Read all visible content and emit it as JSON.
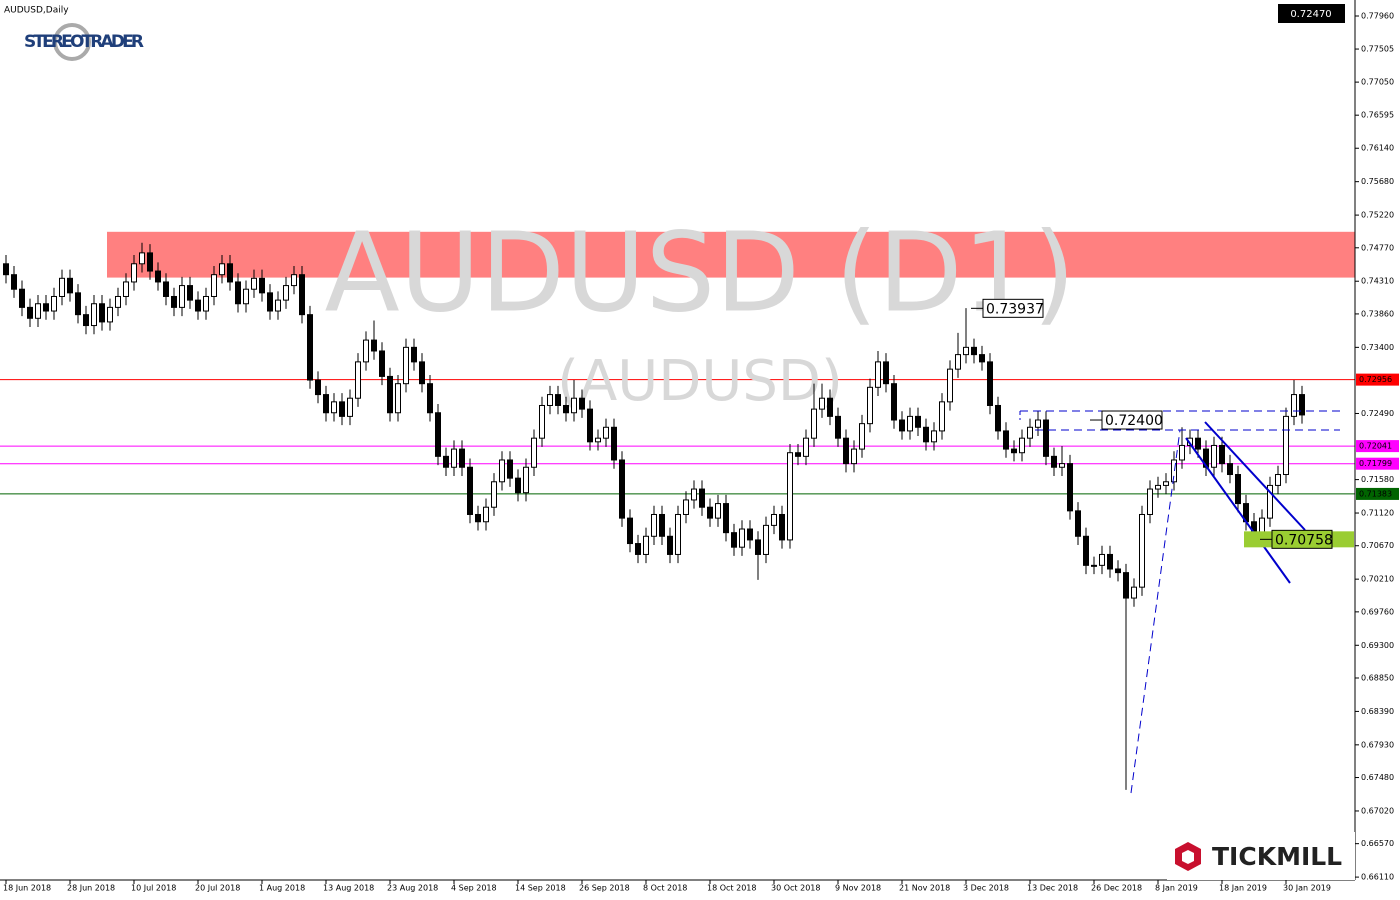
{
  "chart_data": {
    "type": "candlestick",
    "title": "AUDUSD,Daily",
    "watermark": "AUDUSD (D1)",
    "watermark_sub": "(AUDUSD)",
    "source_logo": "STEREOTRADER",
    "broker_logo": "TICKMILL",
    "categories": [
      "18 Jun 2018",
      null,
      null,
      null,
      null,
      null,
      null,
      null,
      "28 Jun 2018",
      null,
      null,
      null,
      null,
      null,
      null,
      null,
      "10 Jul 2018",
      null,
      null,
      null,
      null,
      null,
      null,
      null,
      "20 Jul 2018",
      null,
      null,
      null,
      null,
      null,
      null,
      null,
      "1 Aug 2018",
      null,
      null,
      null,
      null,
      null,
      null,
      null,
      "13 Aug 2018",
      null,
      null,
      null,
      null,
      null,
      null,
      null,
      "23 Aug 2018",
      null,
      null,
      null,
      null,
      null,
      null,
      null,
      "4 Sep 2018",
      null,
      null,
      null,
      null,
      null,
      null,
      null,
      "14 Sep 2018",
      null,
      null,
      null,
      null,
      null,
      null,
      null,
      "26 Sep 2018",
      null,
      null,
      null,
      null,
      null,
      null,
      null,
      "8 Oct 2018",
      null,
      null,
      null,
      null,
      null,
      null,
      null,
      "18 Oct 2018",
      null,
      null,
      null,
      null,
      null,
      null,
      null,
      "30 Oct 2018",
      null,
      null,
      null,
      null,
      null,
      null,
      null,
      "9 Nov 2018",
      null,
      null,
      null,
      null,
      null,
      null,
      null,
      "21 Nov 2018",
      null,
      null,
      null,
      null,
      null,
      null,
      null,
      "3 Dec 2018",
      null,
      null,
      null,
      null,
      null,
      null,
      null,
      "13 Dec 2018",
      null,
      null,
      null,
      null,
      null,
      null,
      null,
      "26 Dec 2018",
      null,
      null,
      null,
      null,
      null,
      null,
      null,
      "8 Jan 2019",
      null,
      null,
      null,
      null,
      null,
      null,
      null,
      "18 Jan 2019",
      null,
      null,
      null,
      null,
      null,
      null,
      null,
      "30 Jan 2019",
      null,
      null
    ],
    "open": [
      0.7455,
      0.744,
      0.742,
      0.7395,
      0.738,
      0.74,
      0.739,
      0.741,
      0.7435,
      0.7415,
      0.7385,
      0.737,
      0.74,
      0.7375,
      0.7395,
      0.741,
      0.743,
      0.7455,
      0.747,
      0.7445,
      0.743,
      0.741,
      0.7395,
      0.7425,
      0.7405,
      0.739,
      0.741,
      0.744,
      0.7455,
      0.743,
      0.74,
      0.742,
      0.7435,
      0.7415,
      0.739,
      0.7405,
      0.7425,
      0.744,
      0.7385,
      0.7295,
      0.7275,
      0.725,
      0.7265,
      0.7245,
      0.727,
      0.732,
      0.735,
      0.7335,
      0.73,
      0.725,
      0.729,
      0.734,
      0.732,
      0.729,
      0.725,
      0.719,
      0.7175,
      0.72,
      0.7175,
      0.711,
      0.71,
      0.712,
      0.7155,
      0.7185,
      0.716,
      0.714,
      0.7175,
      0.7215,
      0.726,
      0.7275,
      0.726,
      0.725,
      0.727,
      0.7255,
      0.721,
      0.7215,
      0.723,
      0.7185,
      0.7105,
      0.707,
      0.7055,
      0.708,
      0.711,
      0.708,
      0.7055,
      0.711,
      0.713,
      0.7145,
      0.712,
      0.7105,
      0.7125,
      0.7085,
      0.7065,
      0.709,
      0.7075,
      0.7055,
      0.7095,
      0.711,
      0.7075,
      0.7195,
      0.719,
      0.7215,
      0.7255,
      0.727,
      0.7245,
      0.7215,
      0.718,
      0.72,
      0.7235,
      0.7285,
      0.732,
      0.729,
      0.724,
      0.7225,
      0.7245,
      0.723,
      0.721,
      0.7225,
      0.7265,
      0.731,
      0.733,
      0.734,
      0.733,
      0.732,
      0.726,
      0.7225,
      0.72,
      0.7195,
      0.7215,
      0.723,
      0.724,
      0.719,
      0.7175,
      0.718,
      0.7115,
      0.708,
      0.704,
      0.704,
      0.7055,
      0.7035,
      0.703,
      0.6995,
      0.701,
      0.711,
      0.7145,
      0.715,
      0.7155,
      0.7185,
      0.7205,
      0.7215,
      0.72,
      0.7175,
      0.7205,
      0.718,
      0.7165,
      0.7125,
      0.71,
      0.7085,
      0.7105,
      0.715,
      0.7165,
      0.7245,
      0.7275
    ],
    "high": [
      0.7467,
      0.7452,
      0.7432,
      0.7407,
      0.7412,
      0.7412,
      0.7422,
      0.7447,
      0.7447,
      0.7427,
      0.7397,
      0.7412,
      0.7412,
      0.7407,
      0.7422,
      0.7442,
      0.7467,
      0.7484,
      0.7482,
      0.7457,
      0.7442,
      0.7422,
      0.7437,
      0.7437,
      0.7417,
      0.7422,
      0.7452,
      0.7467,
      0.7467,
      0.7442,
      0.7432,
      0.7447,
      0.7447,
      0.7427,
      0.7417,
      0.7437,
      0.7452,
      0.7452,
      0.7397,
      0.7307,
      0.7287,
      0.7277,
      0.7277,
      0.7282,
      0.7332,
      0.7362,
      0.7377,
      0.7347,
      0.7312,
      0.7302,
      0.7352,
      0.7352,
      0.7332,
      0.7302,
      0.7262,
      0.7202,
      0.7212,
      0.7212,
      0.7187,
      0.7122,
      0.7132,
      0.7167,
      0.7197,
      0.7197,
      0.7172,
      0.7187,
      0.7227,
      0.7272,
      0.7287,
      0.7287,
      0.7272,
      0.7295,
      0.7282,
      0.7267,
      0.7227,
      0.7242,
      0.7242,
      0.7197,
      0.7117,
      0.7082,
      0.7092,
      0.7122,
      0.7122,
      0.7092,
      0.7122,
      0.7142,
      0.7157,
      0.7157,
      0.7132,
      0.7137,
      0.7137,
      0.7097,
      0.7102,
      0.7102,
      0.7087,
      0.7107,
      0.7122,
      0.7122,
      0.7207,
      0.7207,
      0.7227,
      0.729,
      0.729,
      0.7282,
      0.7257,
      0.7227,
      0.7212,
      0.7247,
      0.7297,
      0.7335,
      0.7332,
      0.7302,
      0.7252,
      0.7257,
      0.7257,
      0.7242,
      0.7237,
      0.7277,
      0.7322,
      0.736,
      0.7394,
      0.7352,
      0.7342,
      0.7332,
      0.7272,
      0.7237,
      0.7212,
      0.7227,
      0.7242,
      0.7252,
      0.7252,
      0.7202,
      0.7204,
      0.7192,
      0.7127,
      0.7092,
      0.7052,
      0.7067,
      0.7067,
      0.7047,
      0.7042,
      0.7022,
      0.7122,
      0.7157,
      0.7162,
      0.7167,
      0.7197,
      0.723,
      0.7227,
      0.7227,
      0.7212,
      0.7217,
      0.7217,
      0.7192,
      0.7177,
      0.7137,
      0.7112,
      0.7117,
      0.7162,
      0.7177,
      0.7257,
      0.7295,
      0.7287
    ],
    "low": [
      0.7428,
      0.7408,
      0.7383,
      0.7368,
      0.7368,
      0.7378,
      0.7378,
      0.7398,
      0.7403,
      0.7373,
      0.7358,
      0.7358,
      0.7363,
      0.7363,
      0.7383,
      0.7398,
      0.7418,
      0.7443,
      0.7433,
      0.7418,
      0.7398,
      0.7383,
      0.7383,
      0.7393,
      0.7378,
      0.7378,
      0.7398,
      0.7428,
      0.7418,
      0.7388,
      0.7388,
      0.7408,
      0.7403,
      0.7378,
      0.7378,
      0.7393,
      0.7413,
      0.7373,
      0.7283,
      0.7263,
      0.7238,
      0.7238,
      0.7233,
      0.7233,
      0.7258,
      0.7308,
      0.7323,
      0.7288,
      0.7238,
      0.7238,
      0.7278,
      0.7308,
      0.7278,
      0.7238,
      0.7178,
      0.7163,
      0.7163,
      0.7163,
      0.7098,
      0.7088,
      0.7088,
      0.7108,
      0.7143,
      0.7148,
      0.7128,
      0.7128,
      0.7163,
      0.7203,
      0.7248,
      0.7248,
      0.7238,
      0.7238,
      0.7243,
      0.7198,
      0.7198,
      0.7203,
      0.7173,
      0.7093,
      0.7058,
      0.7043,
      0.7043,
      0.7068,
      0.7068,
      0.7043,
      0.7043,
      0.7098,
      0.7118,
      0.7108,
      0.7093,
      0.7093,
      0.7073,
      0.7053,
      0.7053,
      0.7063,
      0.702,
      0.7043,
      0.7083,
      0.7063,
      0.7063,
      0.7178,
      0.7178,
      0.7203,
      0.7243,
      0.7233,
      0.7203,
      0.7168,
      0.7168,
      0.7188,
      0.7223,
      0.7273,
      0.7278,
      0.7228,
      0.7213,
      0.7213,
      0.7218,
      0.7198,
      0.7198,
      0.7213,
      0.7253,
      0.7298,
      0.7318,
      0.7318,
      0.7308,
      0.7248,
      0.7213,
      0.7188,
      0.7183,
      0.7183,
      0.7203,
      0.7218,
      0.7178,
      0.7163,
      0.7163,
      0.7103,
      0.7068,
      0.7028,
      0.7028,
      0.7028,
      0.7023,
      0.7018,
      0.6731,
      0.6983,
      0.6998,
      0.7098,
      0.7133,
      0.7138,
      0.7143,
      0.7173,
      0.7193,
      0.7188,
      0.7163,
      0.7163,
      0.7168,
      0.7153,
      0.7113,
      0.7088,
      0.7076,
      0.7073,
      0.7093,
      0.7138,
      0.7153,
      0.7233,
      0.7235
    ],
    "close": [
      0.744,
      0.742,
      0.7395,
      0.738,
      0.74,
      0.739,
      0.741,
      0.7435,
      0.7415,
      0.7385,
      0.737,
      0.74,
      0.7375,
      0.7395,
      0.741,
      0.743,
      0.7455,
      0.747,
      0.7445,
      0.743,
      0.741,
      0.7395,
      0.7425,
      0.7405,
      0.739,
      0.741,
      0.744,
      0.7455,
      0.743,
      0.74,
      0.742,
      0.7435,
      0.7415,
      0.739,
      0.7405,
      0.7425,
      0.744,
      0.7385,
      0.7295,
      0.7275,
      0.725,
      0.7265,
      0.7245,
      0.727,
      0.732,
      0.735,
      0.7335,
      0.73,
      0.725,
      0.729,
      0.734,
      0.732,
      0.729,
      0.725,
      0.719,
      0.7175,
      0.72,
      0.7175,
      0.711,
      0.71,
      0.712,
      0.7155,
      0.7185,
      0.716,
      0.714,
      0.7175,
      0.7215,
      0.726,
      0.7275,
      0.726,
      0.725,
      0.727,
      0.7255,
      0.721,
      0.7215,
      0.723,
      0.7185,
      0.7105,
      0.707,
      0.7055,
      0.708,
      0.711,
      0.708,
      0.7055,
      0.711,
      0.713,
      0.7145,
      0.712,
      0.7105,
      0.7125,
      0.7085,
      0.7065,
      0.709,
      0.7075,
      0.7055,
      0.7095,
      0.711,
      0.7075,
      0.7195,
      0.719,
      0.7215,
      0.7255,
      0.727,
      0.7245,
      0.7215,
      0.718,
      0.72,
      0.7235,
      0.7285,
      0.732,
      0.729,
      0.724,
      0.7225,
      0.7245,
      0.723,
      0.721,
      0.7225,
      0.7265,
      0.731,
      0.733,
      0.734,
      0.733,
      0.732,
      0.726,
      0.7225,
      0.72,
      0.7195,
      0.7215,
      0.723,
      0.724,
      0.719,
      0.7175,
      0.718,
      0.7115,
      0.708,
      0.704,
      0.704,
      0.7055,
      0.7035,
      0.703,
      0.6995,
      0.701,
      0.711,
      0.7145,
      0.715,
      0.7155,
      0.7185,
      0.7205,
      0.7215,
      0.72,
      0.7175,
      0.7205,
      0.718,
      0.7165,
      0.7125,
      0.71,
      0.7085,
      0.7105,
      0.715,
      0.7165,
      0.7245,
      0.7275,
      0.7247
    ],
    "up_color": "#ffffff",
    "down_color": "#000000",
    "ylim": [
      0.6607,
      0.7818
    ],
    "yticks": [
      {
        "value": 0.7796,
        "label": "0.77960"
      },
      0.77505,
      {
        "value": 0.7705,
        "label": "0.77050"
      },
      0.76595,
      {
        "value": 0.7614,
        "label": "0.76140"
      },
      {
        "value": 0.7568,
        "label": "0.75680"
      },
      {
        "value": 0.7522,
        "label": "0.75220"
      },
      {
        "value": 0.7477,
        "label": "0.74770"
      },
      {
        "value": 0.7431,
        "label": "0.74310"
      },
      {
        "value": 0.7386,
        "label": "0.73860"
      },
      {
        "value": 0.734,
        "label": "0.73400"
      },
      {
        "value": 0.7249,
        "label": "0.72490"
      },
      {
        "value": 0.7158,
        "label": "0.71580"
      },
      {
        "value": 0.7112,
        "label": "0.71120"
      },
      {
        "value": 0.7067,
        "label": "0.70670"
      },
      {
        "value": 0.7021,
        "label": "0.70210"
      },
      {
        "value": 0.6976,
        "label": "0.69760"
      },
      {
        "value": 0.693,
        "label": "0.69300"
      },
      {
        "value": 0.6885,
        "label": "0.68850"
      },
      {
        "value": 0.6839,
        "label": "0.68390"
      },
      {
        "value": 0.6793,
        "label": "0.67930"
      },
      {
        "value": 0.6748,
        "label": "0.67480"
      },
      {
        "value": 0.6702,
        "label": "0.67020"
      },
      {
        "value": 0.6657,
        "label": "0.66570"
      },
      {
        "value": 0.6611,
        "label": "0.66110"
      }
    ],
    "current_price": {
      "value": 0.7247,
      "label": "0.72470"
    },
    "zone": {
      "from": 0.7436,
      "to": 0.7499,
      "color": "#ff8080"
    },
    "levels": [
      {
        "value": 0.72956,
        "color": "#ff0000"
      },
      {
        "value": 0.72041,
        "color": "#ff00ff"
      },
      {
        "value": 0.71799,
        "color": "#ff00ff"
      },
      {
        "value": 0.71383,
        "color": "#006400"
      }
    ],
    "annotations": [
      {
        "value": 0.73937,
        "color": "#ffffff"
      },
      {
        "value": 0.724,
        "label": "0.72400",
        "color": "#ffffff"
      },
      {
        "value": 0.70758,
        "color": "#9acd32"
      }
    ]
  }
}
